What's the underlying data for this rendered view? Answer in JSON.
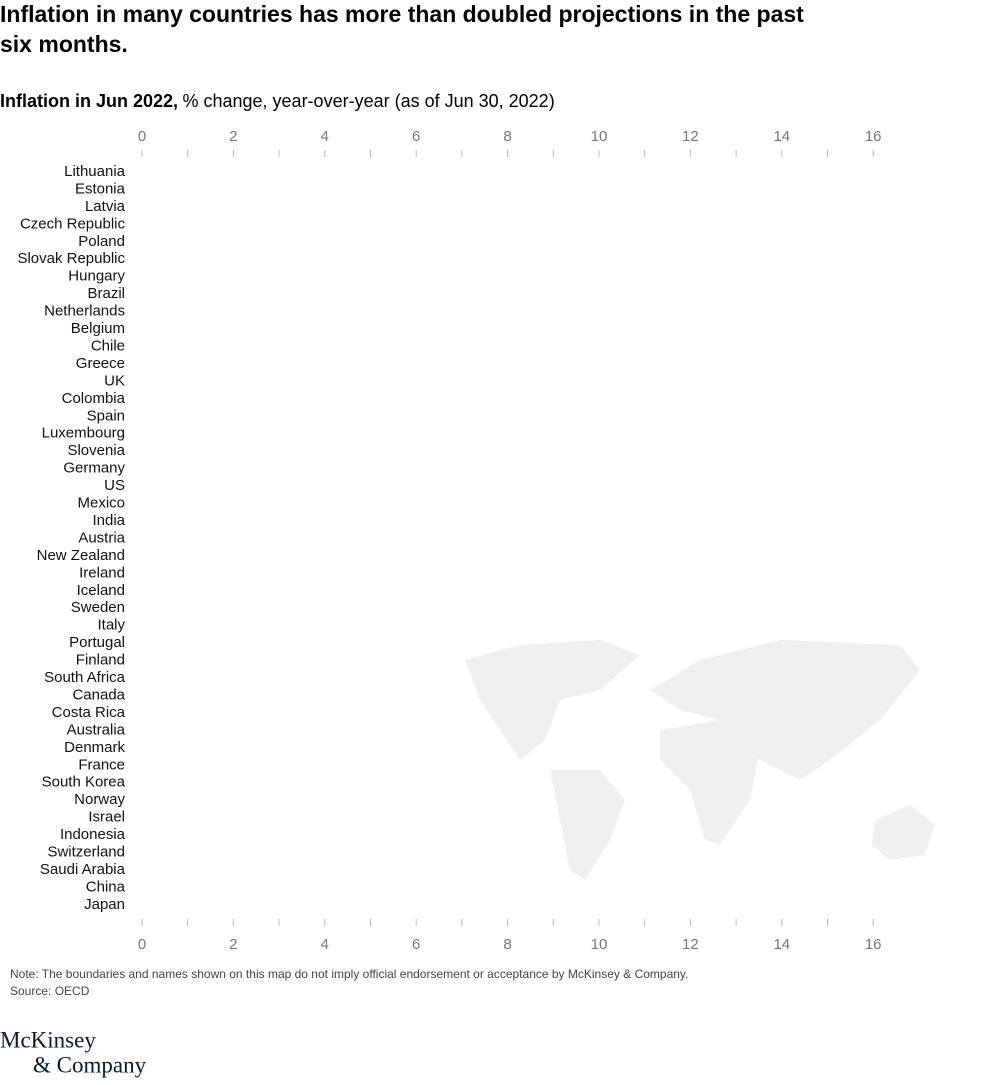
{
  "chart_data": {
    "type": "bar",
    "title_lines": [
      "Inflation in many countries has more than doubled projections in the past",
      "six months."
    ],
    "subtitle_bold": "Inflation in Jun 2022,",
    "subtitle": "% change, year-over-year (as of Jun 30, 2022)",
    "categories": [
      "Lithuania",
      "Estonia",
      "Latvia",
      "Czech Republic",
      "Poland",
      "Slovak Republic",
      "Hungary",
      "Brazil",
      "Netherlands",
      "Belgium",
      "Chile",
      "Greece",
      "UK",
      "Colombia",
      "Spain",
      "Luxembourg",
      "Slovenia",
      "Germany",
      "US",
      "Mexico",
      "India",
      "Austria",
      "New Zealand",
      "Ireland",
      "Iceland",
      "Sweden",
      "Italy",
      "Portugal",
      "Finland",
      "South Africa",
      "Canada",
      "Costa Rica",
      "Australia",
      "Denmark",
      "France",
      "South Korea",
      "Norway",
      "Israel",
      "Indonesia",
      "Switzerland",
      "Saudi Arabia",
      "China",
      "Japan"
    ],
    "xlim": [
      0,
      17
    ],
    "xticks": [
      0,
      2,
      4,
      6,
      8,
      10,
      12,
      14,
      16
    ],
    "xminorticks": [
      1,
      3,
      5,
      7,
      9,
      11,
      13,
      15
    ],
    "note": "Note: The boundaries and names shown on this map do not imply official endorsement or acceptance by McKinsey & Company.",
    "source": "Source: OECD",
    "logo_lines": [
      "McKinsey",
      "& Company"
    ]
  }
}
